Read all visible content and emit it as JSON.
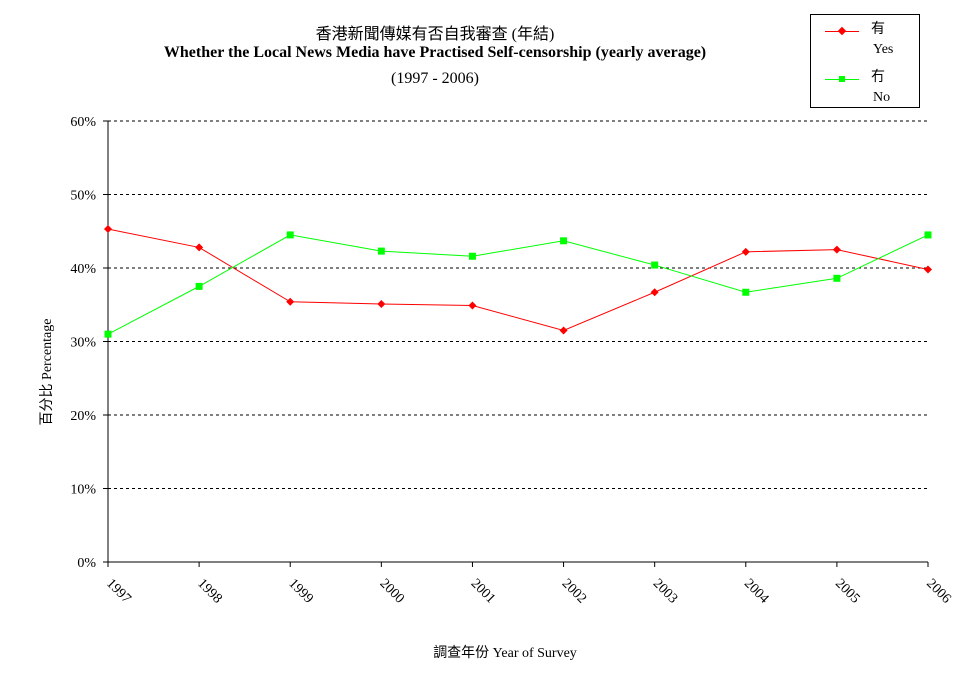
{
  "title": {
    "zh": "香港新聞傳媒有否自我審查 (年結)",
    "en": "Whether the Local News Media have Practised Self-censorship (yearly average)",
    "range": "(1997 - 2006)"
  },
  "legend": [
    {
      "zh": "有",
      "en": "Yes",
      "color": "#ff0000",
      "marker": "diamond"
    },
    {
      "zh": "冇",
      "en": "No",
      "color": "#00ff00",
      "marker": "square"
    }
  ],
  "chart_data": {
    "type": "line",
    "categories": [
      "1997",
      "1998",
      "1999",
      "2000",
      "2001",
      "2002",
      "2003",
      "2004",
      "2005",
      "2006"
    ],
    "series": [
      {
        "name": "有 Yes",
        "color": "#ff0000",
        "marker": "diamond",
        "values": [
          45.3,
          42.8,
          35.4,
          35.1,
          34.9,
          31.5,
          36.7,
          42.2,
          42.5,
          39.8
        ]
      },
      {
        "name": "冇 No",
        "color": "#00ff00",
        "marker": "square",
        "values": [
          31.0,
          37.5,
          44.5,
          42.3,
          41.6,
          43.7,
          40.4,
          36.7,
          38.6,
          44.5
        ]
      }
    ],
    "ylim": [
      0,
      60
    ],
    "yticks": [
      "0%",
      "10%",
      "20%",
      "30%",
      "40%",
      "50%",
      "60%"
    ],
    "ylabel": "百分比 Percentage",
    "xlabel": "調查年份 Year of Survey",
    "grid": "horizontal dashed",
    "legend_position": "top-right"
  }
}
